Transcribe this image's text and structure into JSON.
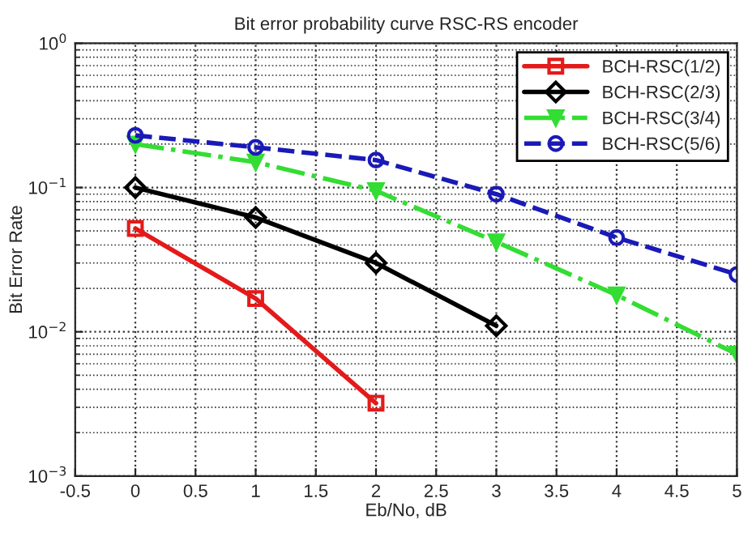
{
  "chart_data": {
    "type": "line",
    "title": "Bit error probability curve RSC-RS encoder",
    "xlabel": "Eb/No, dB",
    "ylabel": "Bit Error Rate",
    "x": [
      0,
      1,
      2,
      3,
      4,
      5
    ],
    "series": [
      {
        "name": "BCH-RSC(1/2)",
        "color": "#e41a1a",
        "marker": "square",
        "line_style": "solid",
        "values": [
          0.052,
          0.017,
          0.0032,
          null,
          null,
          null
        ]
      },
      {
        "name": "BCH-RSC(2/3)",
        "color": "#000000",
        "marker": "diamond",
        "line_style": "solid",
        "values": [
          0.1,
          0.062,
          0.03,
          0.011,
          null,
          null
        ]
      },
      {
        "name": "BCH-RSC(3/4)",
        "color": "#33dd33",
        "marker": "triangle",
        "line_style": "dashdot",
        "values": [
          0.2,
          0.15,
          0.095,
          0.042,
          0.018,
          0.007
        ]
      },
      {
        "name": "BCH-RSC(5/6)",
        "color": "#1a1ab8",
        "marker": "circle",
        "line_style": "dashed",
        "values": [
          0.23,
          0.19,
          0.155,
          0.09,
          0.045,
          0.025
        ]
      }
    ],
    "log": "y",
    "xlim": [
      -0.5,
      5
    ],
    "xticks": [
      -0.5,
      0,
      0.5,
      1,
      1.5,
      2,
      2.5,
      3,
      3.5,
      4,
      4.5,
      5
    ],
    "ylim": [
      0.001,
      1
    ],
    "yticks": [
      {
        "value": 0.001,
        "label": "10$^{−3}$"
      },
      {
        "value": 0.01,
        "label": "10$^{−2}$"
      },
      {
        "value": 0.1,
        "label": "10$^{−1}$"
      },
      {
        "value": 1,
        "label": "10$^{0}$"
      }
    ],
    "grid": true,
    "legend": "top right"
  }
}
